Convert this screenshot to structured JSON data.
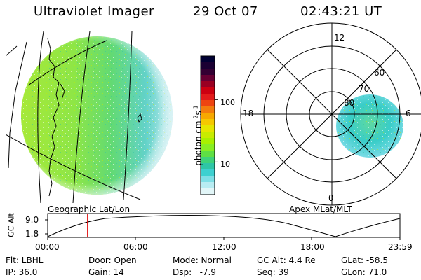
{
  "header": {
    "instrument": "Ultraviolet Imager",
    "date": "29 Oct 07",
    "time": "02:43:21 UT"
  },
  "colorbar": {
    "label": "photon cm",
    "label_exp1": "-2",
    "label_mid": "s",
    "label_exp2": "-1",
    "ticks": [
      "100",
      "10"
    ],
    "colors": [
      "#000033",
      "#1a0033",
      "#330033",
      "#660033",
      "#990022",
      "#cc0011",
      "#e21b1b",
      "#ee4411",
      "#f37c0d",
      "#f7a800",
      "#f5c800",
      "#e6e600",
      "#c8ec00",
      "#a8f000",
      "#88ee22",
      "#5fdf44",
      "#3ed27a",
      "#2ec6a6",
      "#3ed0d0",
      "#7fdfe6",
      "#b8ecf2",
      "#e2f6f8"
    ],
    "log_min": 3,
    "log_max": 500
  },
  "panels": {
    "left_label": "Geographic Lat/Lon",
    "right_label": "Apex MLat/MLT",
    "polar_mlt_labels": {
      "top": "12",
      "left": "18",
      "right": "6",
      "bottom": "0"
    },
    "polar_lat_labels": [
      "60",
      "70",
      "80"
    ]
  },
  "altitude_strip": {
    "ylabel": "GC Alt",
    "yticks": [
      "9.0",
      "1.8"
    ],
    "xticks": [
      "00:00",
      "06:00",
      "12:00",
      "18:00",
      "23:59"
    ],
    "current_marker_hours": 2.72
  },
  "footer": {
    "row1": {
      "flt": "Flt: LBHL",
      "door": "Door: Open",
      "mode": "Mode: Normal",
      "gcalt": "GC Alt: 4.4 Re",
      "glat": "GLat: -58.5"
    },
    "row2": {
      "ip": "IP: 36.0",
      "gain": "Gain: 14",
      "dsp": "Dsp:   -7.9",
      "seq": "Seq: 39",
      "glon": "GLon: 71.0"
    }
  }
}
